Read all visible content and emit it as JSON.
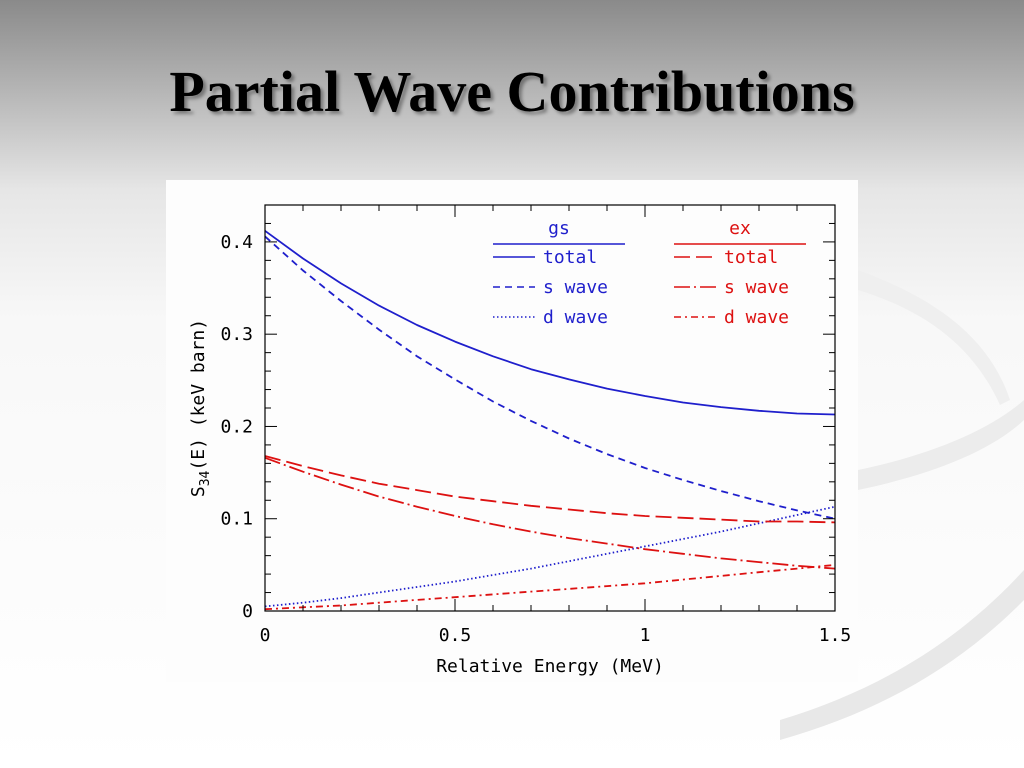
{
  "slide": {
    "title": "Partial Wave Contributions"
  },
  "colors": {
    "gs": "#1f1fcc",
    "ex": "#dd1111",
    "axis": "#000000"
  },
  "chart_data": {
    "type": "line",
    "title": "",
    "xlabel": "Relative Energy (MeV)",
    "ylabel_main": "S",
    "ylabel_sub": "34",
    "ylabel_rest": "(E) (keV barn)",
    "xlim": [
      0,
      1.5
    ],
    "ylim": [
      0,
      0.44
    ],
    "xticks": [
      0,
      0.5,
      1,
      1.5
    ],
    "xtick_labels": [
      "0",
      "0.5",
      "1",
      "1.5"
    ],
    "yticks": [
      0,
      0.1,
      0.2,
      0.3,
      0.4
    ],
    "ytick_labels": [
      "0",
      "0.1",
      "0.2",
      "0.3",
      "0.4"
    ],
    "grid": false,
    "legend_position": "top-right",
    "legend_groups": [
      {
        "header": "gs",
        "color_key": "gs",
        "entries": [
          "total",
          "s wave",
          "d wave"
        ]
      },
      {
        "header": "ex",
        "color_key": "ex",
        "entries": [
          "total",
          "s wave",
          "d wave"
        ]
      }
    ],
    "x": [
      0,
      0.1,
      0.2,
      0.3,
      0.4,
      0.5,
      0.6,
      0.7,
      0.8,
      0.9,
      1.0,
      1.1,
      1.2,
      1.3,
      1.4,
      1.5
    ],
    "series": [
      {
        "name": "total",
        "group": "gs",
        "style": "solid",
        "values": [
          0.412,
          0.382,
          0.355,
          0.331,
          0.31,
          0.292,
          0.276,
          0.262,
          0.251,
          0.241,
          0.233,
          0.226,
          0.221,
          0.217,
          0.214,
          0.213
        ]
      },
      {
        "name": "s wave",
        "group": "gs",
        "style": "dashed",
        "values": [
          0.406,
          0.369,
          0.336,
          0.305,
          0.276,
          0.251,
          0.227,
          0.206,
          0.187,
          0.17,
          0.155,
          0.142,
          0.13,
          0.119,
          0.109,
          0.1
        ]
      },
      {
        "name": "d wave",
        "group": "gs",
        "style": "dotted",
        "values": [
          0.005,
          0.009,
          0.014,
          0.02,
          0.026,
          0.032,
          0.039,
          0.046,
          0.054,
          0.062,
          0.07,
          0.078,
          0.086,
          0.095,
          0.104,
          0.113
        ]
      },
      {
        "name": "total",
        "group": "ex",
        "style": "longdash",
        "values": [
          0.168,
          0.157,
          0.147,
          0.138,
          0.131,
          0.124,
          0.119,
          0.114,
          0.11,
          0.106,
          0.103,
          0.101,
          0.099,
          0.097,
          0.097,
          0.096
        ]
      },
      {
        "name": "s wave",
        "group": "ex",
        "style": "longdashdot",
        "values": [
          0.166,
          0.151,
          0.137,
          0.124,
          0.113,
          0.103,
          0.094,
          0.086,
          0.079,
          0.073,
          0.067,
          0.062,
          0.057,
          0.053,
          0.049,
          0.046
        ]
      },
      {
        "name": "d wave",
        "group": "ex",
        "style": "dashdot",
        "values": [
          0.002,
          0.004,
          0.006,
          0.009,
          0.012,
          0.015,
          0.018,
          0.021,
          0.024,
          0.027,
          0.03,
          0.034,
          0.038,
          0.042,
          0.046,
          0.05
        ]
      }
    ]
  }
}
